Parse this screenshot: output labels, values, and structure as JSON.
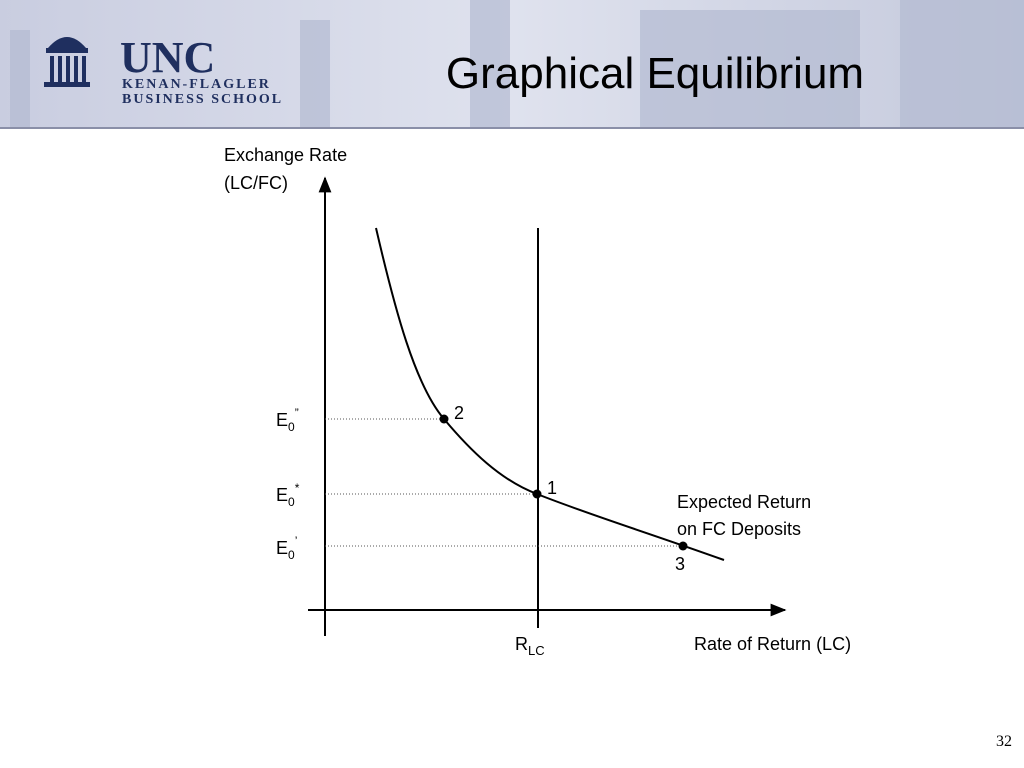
{
  "header": {
    "logo": {
      "name": "UNC",
      "line1": "KENAN-FLAGLER",
      "line2": "BUSINESS SCHOOL"
    },
    "title": "Graphical Equilibrium"
  },
  "diagram": {
    "y_axis_label": [
      "Exchange Rate",
      "(LC/FC)"
    ],
    "x_axis_label": "Rate of Return (LC)",
    "levels": [
      {
        "base": "E",
        "sub": "0",
        "sup": "”"
      },
      {
        "base": "E",
        "sub": "0",
        "sup": "*"
      },
      {
        "base": "E",
        "sub": "0",
        "sup": "’"
      }
    ],
    "return_label": {
      "base": "R",
      "sub": "LC"
    },
    "curve_label": [
      "Expected Return",
      "on FC Deposits"
    ],
    "points": [
      "2",
      "1",
      "3"
    ]
  },
  "page_number": "32"
}
